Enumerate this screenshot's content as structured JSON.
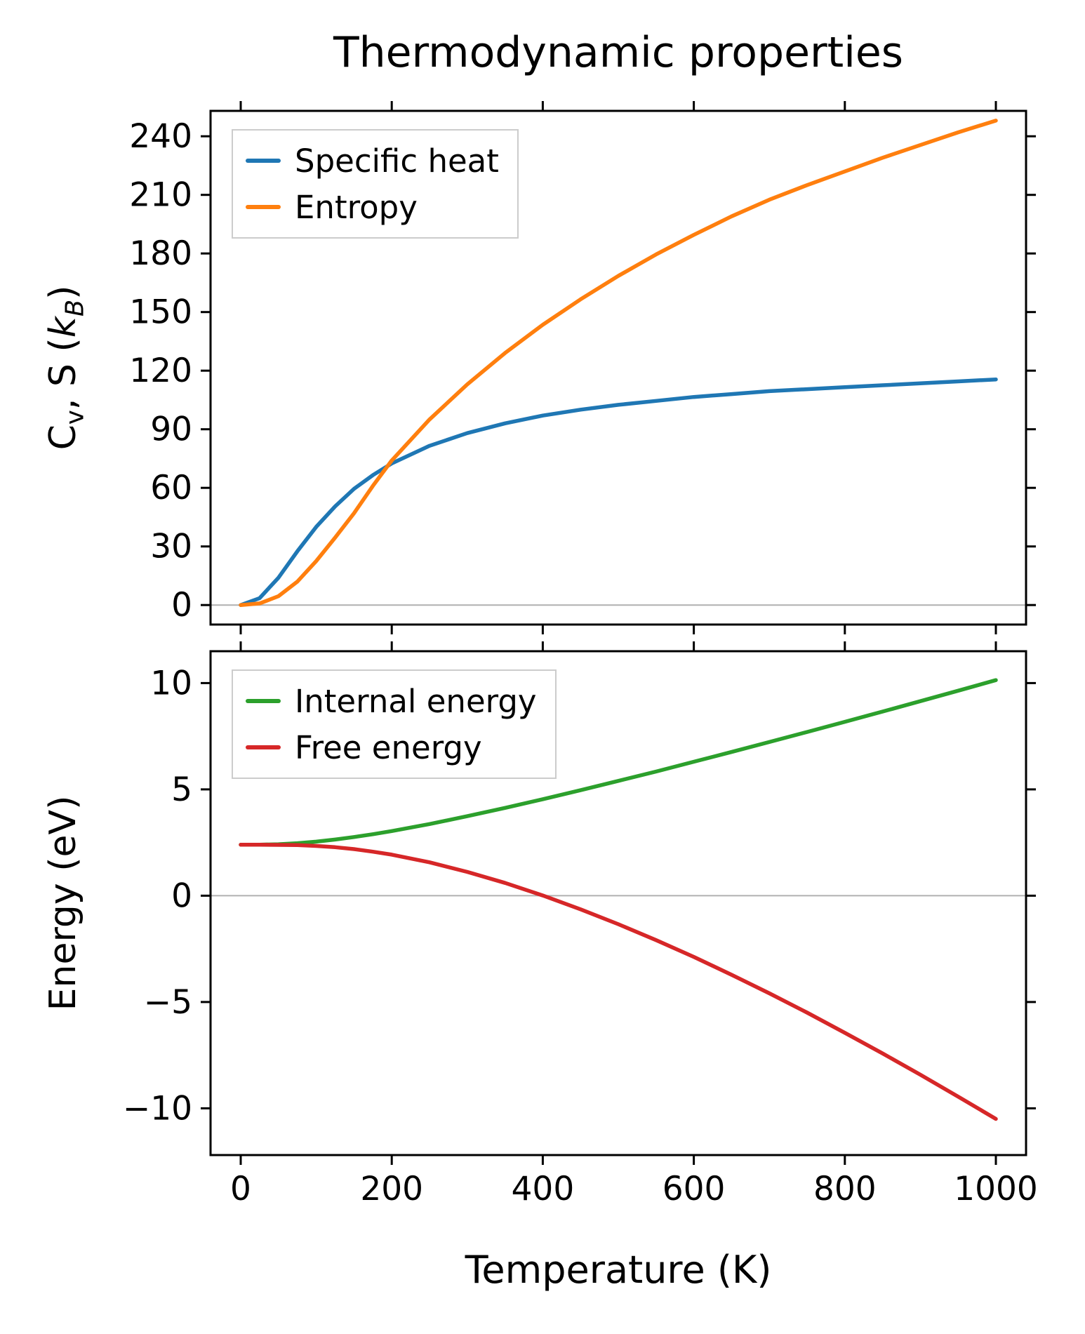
{
  "title": "Thermodynamic properties",
  "axes": {
    "xlabel": "Temperature (K)",
    "top_ylabel": {
      "c": "C",
      "v": "v",
      "mid": ", S (",
      "k": "k",
      "b": "B",
      "close": ")"
    },
    "bottom_ylabel": "Energy (eV)"
  },
  "colors": {
    "specific_heat": "#1f77b4",
    "entropy": "#ff7f0e",
    "internal_energy": "#2ca02c",
    "free_energy": "#d62728",
    "zero_line": "#b0b0b0",
    "spine": "#000000",
    "background": "#ffffff"
  },
  "chart_data": [
    {
      "id": "cv-entropy",
      "type": "line",
      "title": "Thermodynamic properties",
      "xlabel": "",
      "ylabel": "C_v, S (k_B)",
      "xlim": [
        -40,
        1040
      ],
      "ylim": [
        -10,
        253
      ],
      "xticks": [
        0,
        200,
        400,
        600,
        800,
        1000
      ],
      "yticks": [
        0,
        30,
        60,
        90,
        120,
        150,
        180,
        210,
        240
      ],
      "show_x_tick_labels": false,
      "grid": false,
      "zero_line": true,
      "legend_position": "upper left",
      "x": [
        0,
        25,
        50,
        75,
        100,
        125,
        150,
        175,
        200,
        250,
        300,
        350,
        400,
        450,
        500,
        550,
        600,
        650,
        700,
        750,
        800,
        850,
        900,
        950,
        1000
      ],
      "series": [
        {
          "name": "Specific heat",
          "color": "#1f77b4",
          "values": [
            0,
            3.5,
            14,
            27.5,
            40,
            50.5,
            59.5,
            66.5,
            72.5,
            81.5,
            88,
            93,
            97,
            100,
            102.5,
            104.5,
            106.5,
            108,
            109.5,
            110.5,
            111.5,
            112.5,
            113.5,
            114.5,
            115.5
          ]
        },
        {
          "name": "Entropy",
          "color": "#ff7f0e",
          "values": [
            0,
            0.8,
            4.5,
            12,
            22.5,
            34.5,
            47,
            61,
            74,
            95,
            113,
            129,
            143.5,
            156.5,
            168.5,
            179.5,
            189.5,
            199,
            207.5,
            215,
            222,
            229,
            235.5,
            242,
            248
          ]
        }
      ]
    },
    {
      "id": "energy",
      "type": "line",
      "title": "",
      "xlabel": "Temperature (K)",
      "ylabel": "Energy (eV)",
      "xlim": [
        -40,
        1040
      ],
      "ylim": [
        -12.2,
        11.5
      ],
      "xticks": [
        0,
        200,
        400,
        600,
        800,
        1000
      ],
      "yticks": [
        -10,
        -5,
        0,
        5,
        10
      ],
      "show_x_tick_labels": true,
      "grid": false,
      "zero_line": true,
      "legend_position": "upper left",
      "x": [
        0,
        25,
        50,
        75,
        100,
        125,
        150,
        175,
        200,
        250,
        300,
        350,
        400,
        450,
        500,
        550,
        600,
        650,
        700,
        750,
        800,
        850,
        900,
        950,
        1000
      ],
      "series": [
        {
          "name": "Internal energy",
          "color": "#2ca02c",
          "values": [
            2.4,
            2.4,
            2.42,
            2.47,
            2.54,
            2.64,
            2.76,
            2.89,
            3.04,
            3.37,
            3.74,
            4.13,
            4.54,
            4.96,
            5.4,
            5.84,
            6.3,
            6.76,
            7.23,
            7.7,
            8.18,
            8.66,
            9.15,
            9.64,
            10.14
          ]
        },
        {
          "name": "Free energy",
          "color": "#d62728",
          "values": [
            2.4,
            2.4,
            2.39,
            2.38,
            2.34,
            2.28,
            2.19,
            2.07,
            1.93,
            1.57,
            1.12,
            0.6,
            0.01,
            -0.64,
            -1.34,
            -2.09,
            -2.88,
            -3.72,
            -4.59,
            -5.5,
            -6.45,
            -7.42,
            -8.42,
            -9.45,
            -10.5
          ]
        }
      ]
    }
  ]
}
